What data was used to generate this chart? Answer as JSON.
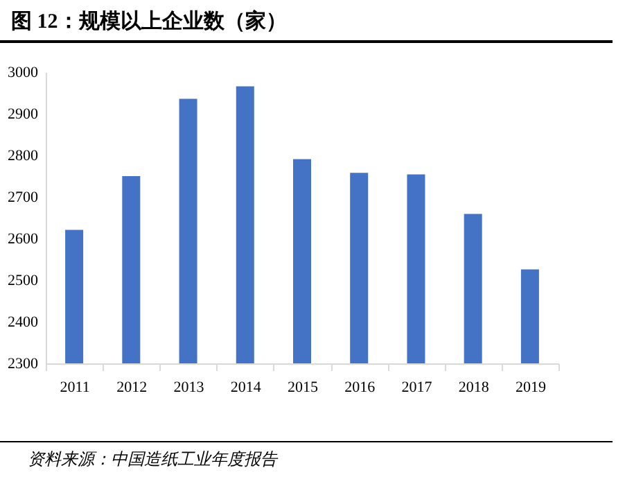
{
  "chart_data": {
    "type": "bar",
    "title": "图 12：规模以上企业数（家）",
    "categories": [
      "2011",
      "2012",
      "2013",
      "2014",
      "2015",
      "2016",
      "2017",
      "2018",
      "2019"
    ],
    "values": [
      2621,
      2750,
      2936,
      2966,
      2791,
      2758,
      2754,
      2659,
      2526
    ],
    "color": "#4472c4",
    "ylim": [
      2300,
      3000
    ],
    "yticks": [
      2300,
      2400,
      2500,
      2600,
      2700,
      2800,
      2900,
      3000
    ],
    "annotations": [
      "资料来源：中国造纸工业年度报告"
    ]
  }
}
